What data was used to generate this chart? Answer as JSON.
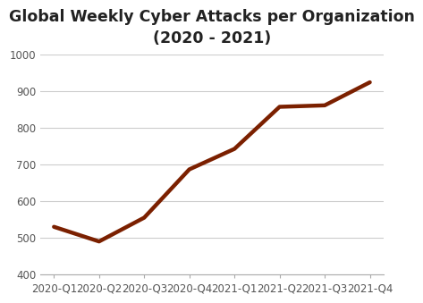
{
  "title": "Global Weekly Cyber Attacks per Organization\n(2020 - 2021)",
  "x_labels": [
    "2020-Q1",
    "2020-Q2",
    "2020-Q3",
    "2020-Q4",
    "2021-Q1",
    "2021-Q2",
    "2021-Q3",
    "2021-Q4"
  ],
  "y_values": [
    530,
    490,
    555,
    687,
    743,
    858,
    862,
    925
  ],
  "line_color": "#7B2000",
  "line_width": 3.2,
  "ylim": [
    400,
    1000
  ],
  "yticks": [
    400,
    500,
    600,
    700,
    800,
    900,
    1000
  ],
  "background_color": "#ffffff",
  "title_fontsize": 12.5,
  "tick_fontsize": 8.5,
  "grid_color": "#cccccc",
  "title_fontweight": "bold",
  "title_color": "#222222"
}
